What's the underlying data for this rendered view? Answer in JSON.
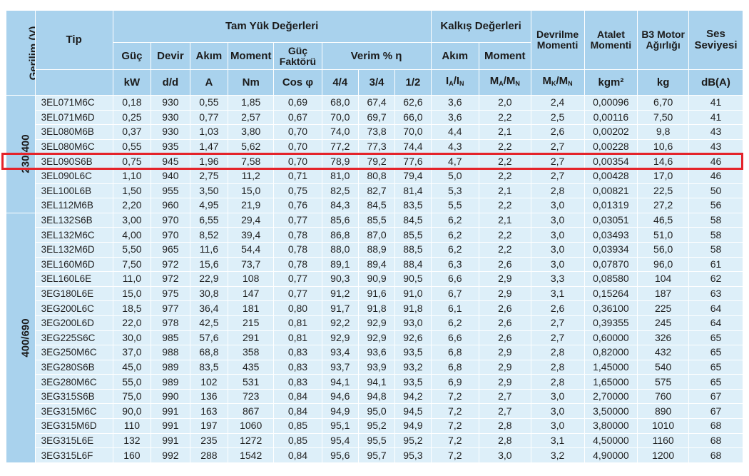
{
  "headers": {
    "voltage": "Gerilim (V)",
    "tip": "Tip",
    "full_load": "Tam Yük Değerleri",
    "starting": "Kalkış Değerleri",
    "breakdown": "Devrilme Momenti",
    "inertia": "Atalet Momenti",
    "weight": "B3 Motor Ağırlığı",
    "sound": "Ses Seviyesi",
    "power": "Güç",
    "speed": "Devir",
    "current": "Akım",
    "moment": "Moment",
    "power_factor": "Güç Faktörü",
    "efficiency": "Verim % η",
    "start_current": "Akım",
    "start_moment": "Moment"
  },
  "units": {
    "power": "kW",
    "speed": "d/d",
    "current": "A",
    "moment": "Nm",
    "cos": "Cos φ",
    "eff44": "4/4",
    "eff34": "3/4",
    "eff12": "1/2",
    "ia_in": "IA/IN",
    "ma_mn": "MA/MN",
    "mk_mn": "MK/MN",
    "inertia": "kgm²",
    "weight": "kg",
    "sound": "dB(A)"
  },
  "groups": [
    {
      "voltage": "230/400",
      "rows": [
        [
          "3EL071M6C",
          "0,18",
          "930",
          "0,55",
          "1,85",
          "0,69",
          "68,0",
          "67,4",
          "62,6",
          "3,6",
          "2,0",
          "2,4",
          "0,00096",
          "6,70",
          "41"
        ],
        [
          "3EL071M6D",
          "0,25",
          "930",
          "0,77",
          "2,57",
          "0,67",
          "70,0",
          "69,7",
          "66,0",
          "3,6",
          "2,2",
          "2,5",
          "0,00116",
          "7,50",
          "41"
        ],
        [
          "3EL080M6B",
          "0,37",
          "930",
          "1,03",
          "3,80",
          "0,70",
          "74,0",
          "73,8",
          "70,0",
          "4,4",
          "2,1",
          "2,6",
          "0,00202",
          "9,8",
          "43"
        ],
        [
          "3EL080M6C",
          "0,55",
          "935",
          "1,47",
          "5,62",
          "0,70",
          "77,2",
          "77,3",
          "74,4",
          "4,3",
          "2,2",
          "2,7",
          "0,00228",
          "10,6",
          "43"
        ],
        [
          "3EL090S6B",
          "0,75",
          "945",
          "1,96",
          "7,58",
          "0,70",
          "78,9",
          "79,2",
          "77,6",
          "4,7",
          "2,2",
          "2,7",
          "0,00354",
          "14,6",
          "46"
        ],
        [
          "3EL090L6C",
          "1,10",
          "940",
          "2,75",
          "11,2",
          "0,71",
          "81,0",
          "80,8",
          "79,4",
          "5,0",
          "2,2",
          "2,7",
          "0,00428",
          "17,0",
          "46"
        ],
        [
          "3EL100L6B",
          "1,50",
          "955",
          "3,50",
          "15,0",
          "0,75",
          "82,5",
          "82,7",
          "81,4",
          "5,3",
          "2,1",
          "2,8",
          "0,00821",
          "22,5",
          "50"
        ],
        [
          "3EL112M6B",
          "2,20",
          "960",
          "4,95",
          "21,9",
          "0,76",
          "84,3",
          "84,5",
          "83,5",
          "5,5",
          "2,2",
          "3,0",
          "0,01319",
          "27,2",
          "56"
        ]
      ]
    },
    {
      "voltage": "400/690",
      "rows": [
        [
          "3EL132S6B",
          "3,00",
          "970",
          "6,55",
          "29,4",
          "0,77",
          "85,6",
          "85,5",
          "84,5",
          "6,2",
          "2,1",
          "3,0",
          "0,03051",
          "46,5",
          "58"
        ],
        [
          "3EL132M6C",
          "4,00",
          "970",
          "8,52",
          "39,4",
          "0,78",
          "86,8",
          "87,0",
          "85,5",
          "6,2",
          "2,2",
          "3,0",
          "0,03493",
          "51,0",
          "58"
        ],
        [
          "3EL132M6D",
          "5,50",
          "965",
          "11,6",
          "54,4",
          "0,78",
          "88,0",
          "88,9",
          "88,5",
          "6,2",
          "2,2",
          "3,0",
          "0,03934",
          "56,0",
          "58"
        ],
        [
          "3EL160M6D",
          "7,50",
          "972",
          "15,6",
          "73,7",
          "0,78",
          "89,1",
          "89,4",
          "88,4",
          "6,3",
          "2,6",
          "3,0",
          "0,07870",
          "96,0",
          "61"
        ],
        [
          "3EL160L6E",
          "11,0",
          "972",
          "22,9",
          "108",
          "0,77",
          "90,3",
          "90,9",
          "90,5",
          "6,6",
          "2,9",
          "3,3",
          "0,08580",
          "104",
          "62"
        ],
        [
          "3EG180L6E",
          "15,0",
          "975",
          "30,8",
          "147",
          "0,77",
          "91,2",
          "91,6",
          "91,0",
          "6,7",
          "2,9",
          "3,1",
          "0,15264",
          "187",
          "63"
        ],
        [
          "3EG200L6C",
          "18,5",
          "977",
          "36,4",
          "181",
          "0,80",
          "91,7",
          "91,8",
          "91,8",
          "6,1",
          "2,6",
          "2,6",
          "0,36100",
          "225",
          "64"
        ],
        [
          "3EG200L6D",
          "22,0",
          "978",
          "42,5",
          "215",
          "0,81",
          "92,2",
          "92,9",
          "93,0",
          "6,2",
          "2,6",
          "2,7",
          "0,39355",
          "245",
          "64"
        ],
        [
          "3EG225S6C",
          "30,0",
          "985",
          "57,6",
          "291",
          "0,81",
          "92,9",
          "92,9",
          "92,6",
          "6,6",
          "2,6",
          "2,7",
          "0,60000",
          "326",
          "65"
        ],
        [
          "3EG250M6C",
          "37,0",
          "988",
          "68,8",
          "358",
          "0,83",
          "93,4",
          "93,6",
          "93,5",
          "6,8",
          "2,9",
          "2,8",
          "0,82000",
          "432",
          "65"
        ],
        [
          "3EG280S6B",
          "45,0",
          "989",
          "83,5",
          "435",
          "0,83",
          "93,7",
          "93,9",
          "93,2",
          "6,8",
          "2,9",
          "2,8",
          "1,45000",
          "540",
          "65"
        ],
        [
          "3EG280M6C",
          "55,0",
          "989",
          "102",
          "531",
          "0,83",
          "94,1",
          "94,1",
          "93,5",
          "6,9",
          "2,9",
          "2,8",
          "1,65000",
          "575",
          "65"
        ],
        [
          "3EG315S6B",
          "75,0",
          "990",
          "136",
          "723",
          "0,84",
          "94,6",
          "94,8",
          "94,2",
          "7,2",
          "2,7",
          "3,0",
          "2,70000",
          "760",
          "67"
        ],
        [
          "3EG315M6C",
          "90,0",
          "991",
          "163",
          "867",
          "0,84",
          "94,9",
          "95,0",
          "94,5",
          "7,2",
          "2,7",
          "3,0",
          "3,50000",
          "890",
          "67"
        ],
        [
          "3EG315M6D",
          "110",
          "991",
          "197",
          "1060",
          "0,85",
          "95,1",
          "95,2",
          "94,9",
          "7,2",
          "2,8",
          "3,0",
          "3,80000",
          "1010",
          "68"
        ],
        [
          "3EG315L6E",
          "132",
          "991",
          "235",
          "1272",
          "0,85",
          "95,4",
          "95,5",
          "95,2",
          "7,2",
          "2,8",
          "3,1",
          "4,50000",
          "1160",
          "68"
        ],
        [
          "3EG315L6F",
          "160",
          "992",
          "288",
          "1542",
          "0,84",
          "95,6",
          "95,7",
          "95,3",
          "7,2",
          "3,0",
          "3,2",
          "4,90000",
          "1200",
          "68"
        ]
      ]
    }
  ],
  "highlight": {
    "group": 0,
    "row": 4,
    "color": "#e4232a"
  }
}
